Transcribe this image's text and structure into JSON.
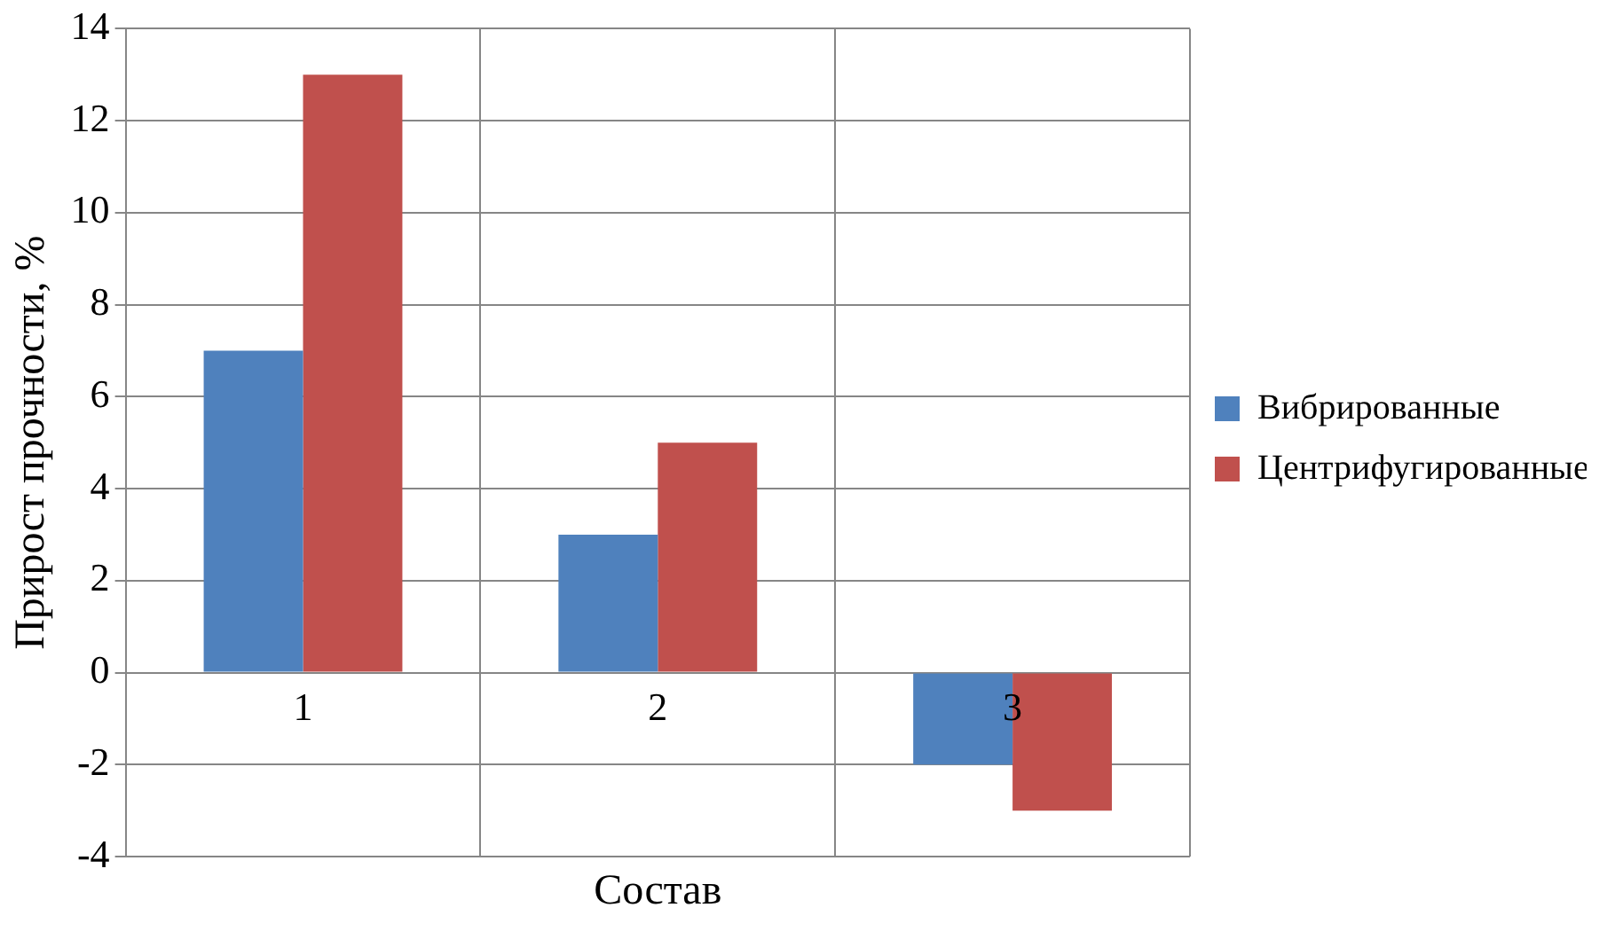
{
  "chart_data": {
    "type": "bar",
    "xlabel": "Состав",
    "ylabel": "Прирост прочности, %",
    "categories": [
      "1",
      "2",
      "3"
    ],
    "series": [
      {
        "name": "Вибрированные",
        "color": "#4f81bd",
        "values": [
          7,
          3,
          -2
        ]
      },
      {
        "name": "Центрифугированные",
        "color": "#c0504d",
        "values": [
          13,
          5,
          -3
        ]
      }
    ],
    "ylim": [
      -4,
      14
    ],
    "yticks": [
      -4,
      -2,
      0,
      2,
      4,
      6,
      8,
      10,
      12,
      14
    ],
    "grid": true,
    "legend": "right"
  }
}
